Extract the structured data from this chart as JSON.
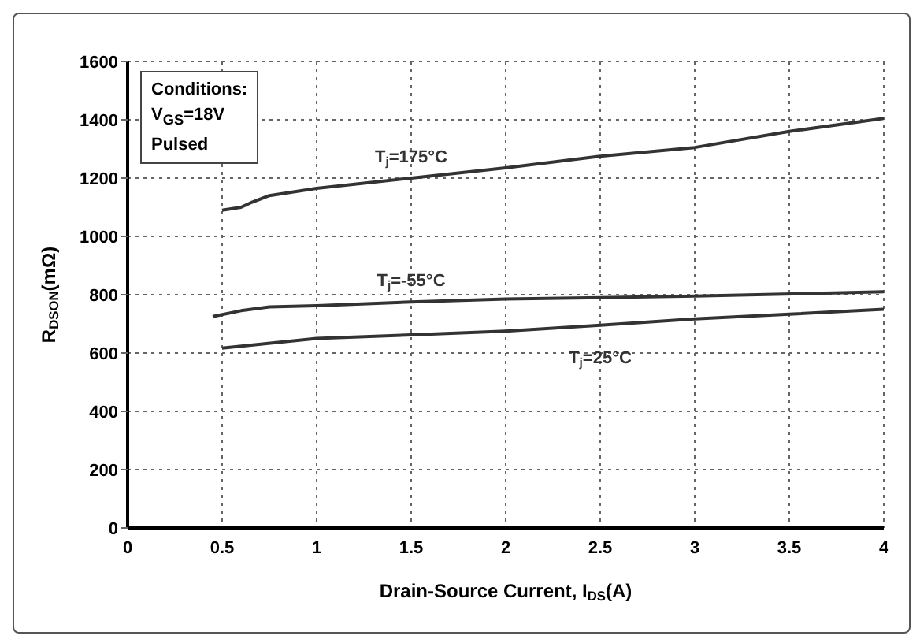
{
  "chart_data": {
    "type": "line",
    "xlabel": "Drain-Source Current, I$_{DS}$(A)",
    "ylabel": "R$_{DSON}$(mΩ)",
    "annotations": [
      "Conditions:\nV$_{GS}$=18V\nPulsed"
    ],
    "xlim": [
      0,
      4
    ],
    "xticks": [
      0,
      0.5,
      1,
      1.5,
      2,
      2.5,
      3,
      3.5,
      4
    ],
    "ylim": [
      0,
      1600
    ],
    "yticks": [
      0,
      200,
      400,
      600,
      800,
      1000,
      1200,
      1400,
      1600
    ],
    "grid": true,
    "marker": "none",
    "line_style": "solid",
    "series": [
      {
        "name": "T$_{j}$=175°C",
        "color": "#333333",
        "x": [
          0.5,
          0.6,
          0.65,
          0.75,
          1,
          1.5,
          2,
          2.5,
          3,
          3.5,
          4
        ],
        "values": [
          1090,
          1100,
          1115,
          1140,
          1165,
          1200,
          1235,
          1275,
          1305,
          1360,
          1405
        ]
      },
      {
        "name": "T$_{j}$=-55°C",
        "color": "#333333",
        "x": [
          0.45,
          0.6,
          0.75,
          1,
          1.5,
          2,
          3,
          4
        ],
        "values": [
          725,
          745,
          758,
          762,
          775,
          785,
          795,
          810
        ]
      },
      {
        "name": "T$_{j}$=25°C",
        "color": "#333333",
        "x": [
          0.5,
          1,
          1.5,
          2,
          2.5,
          3,
          3.5,
          4
        ],
        "values": [
          617,
          650,
          662,
          675,
          695,
          717,
          733,
          750
        ]
      }
    ]
  }
}
